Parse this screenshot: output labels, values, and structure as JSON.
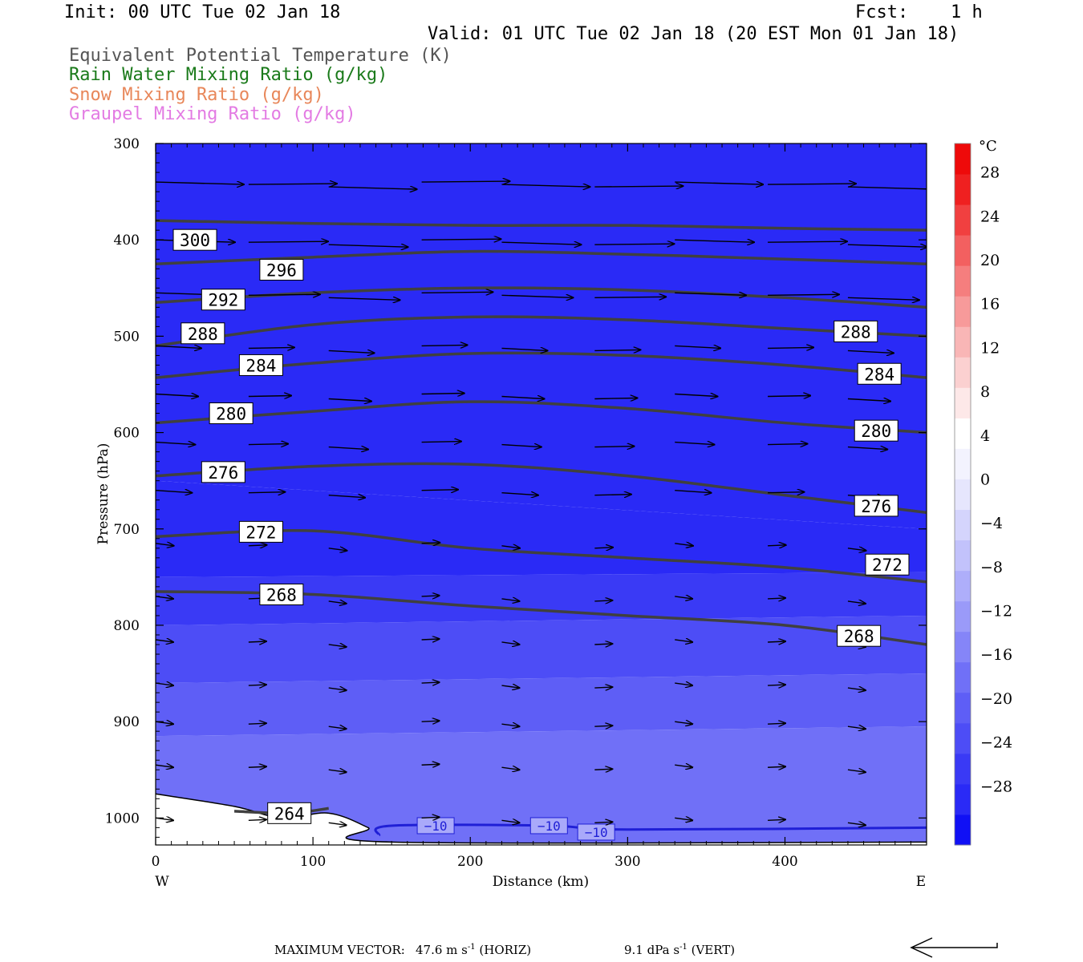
{
  "header": {
    "init": "Init: 00 UTC Tue 02 Jan 18",
    "fcst_label": "Fcst:",
    "fcst_value": "1 h",
    "valid": "Valid: 01 UTC Tue 02 Jan 18 (20 EST Mon 01 Jan 18)",
    "legend": [
      {
        "text": "Equivalent Potential Temperature (K)",
        "color": "#555555"
      },
      {
        "text": "Rain Water Mixing Ratio (g/kg)",
        "color": "#1a7a1a"
      },
      {
        "text": "Snow Mixing Ratio (g/kg)",
        "color": "#e8875a"
      },
      {
        "text": "Graupel Mixing Ratio (g/kg)",
        "color": "#e37be3"
      }
    ]
  },
  "footer": {
    "max_label": "MAXIMUM VECTOR:",
    "horiz_value": "47.6 m s",
    "horiz_exp": "-1",
    "horiz_unit": "(HORIZ)",
    "vert_value": "9.1 dPa s",
    "vert_exp": "-1",
    "vert_unit": "(VERT)"
  },
  "chart_data": {
    "type": "contour cross-section",
    "xlabel": "Distance (km)",
    "ylabel": "Pressure (hPa)",
    "xlim": [
      0,
      490
    ],
    "ylim": [
      1028,
      300
    ],
    "x_ticks": [
      0,
      100,
      200,
      300,
      400
    ],
    "y_ticks": [
      300,
      400,
      500,
      600,
      700,
      800,
      900,
      1000
    ],
    "x_end_labels": {
      "left": "W",
      "right": "E"
    },
    "colorbar": {
      "unit": "°C",
      "tick_labels": [
        "28",
        "24",
        "20",
        "16",
        "12",
        "8",
        "4",
        "0",
        "−4",
        "−8",
        "−12",
        "−16",
        "−20",
        "−24",
        "−28"
      ],
      "tick_values": [
        28,
        24,
        20,
        16,
        12,
        8,
        4,
        0,
        -4,
        -8,
        -12,
        -16,
        -20,
        -24,
        -28
      ],
      "range": [
        -32,
        32
      ],
      "step": 4,
      "colors_low_to_high": [
        "#1010f5",
        "#2a2af6",
        "#3a3af5",
        "#4d4df6",
        "#5e5ef6",
        "#7070f7",
        "#8585f8",
        "#9a9af9",
        "#aeaefa",
        "#c2c2fb",
        "#d4d4fc",
        "#e6e6fd",
        "#f3f3fe",
        "#ffffff",
        "#fde8e8",
        "#fbd0d0",
        "#f9b6b6",
        "#f79a9a",
        "#f57e7e",
        "#f36060",
        "#f14040",
        "#ef2020",
        "#ee0a0a"
      ]
    },
    "temperature_zones_c": [
      {
        "label": "-30",
        "x": [
          0,
          490
        ],
        "top": [
          300,
          300
        ],
        "bottom": [
          650,
          700
        ]
      },
      {
        "label": "-28",
        "x": [
          0,
          490
        ],
        "top": [
          650,
          700
        ],
        "bottom": [
          750,
          745
        ]
      },
      {
        "label": "-24",
        "x": [
          0,
          490
        ],
        "top": [
          750,
          745
        ],
        "bottom": [
          800,
          790
        ]
      },
      {
        "label": "-20",
        "x": [
          0,
          490
        ],
        "top": [
          800,
          790
        ],
        "bottom": [
          860,
          850
        ]
      },
      {
        "label": "-16",
        "x": [
          0,
          490
        ],
        "top": [
          860,
          850
        ],
        "bottom": [
          915,
          905
        ]
      },
      {
        "label": "-12",
        "x": [
          0,
          490
        ],
        "top": [
          915,
          905
        ],
        "bottom": [
          1028,
          1028
        ]
      }
    ],
    "theta_e_contours": [
      {
        "level": 300,
        "x": [
          0,
          100,
          200,
          300,
          400,
          490
        ],
        "p": [
          380,
          383,
          385,
          385,
          388,
          390
        ],
        "label_x": 25,
        "label_p": 400
      },
      {
        "level": 296,
        "x": [
          0,
          100,
          200,
          300,
          400,
          490
        ],
        "p": [
          425,
          418,
          412,
          415,
          420,
          425
        ],
        "label_x": 80,
        "label_p": 431
      },
      {
        "level": 292,
        "x": [
          0,
          100,
          200,
          300,
          400,
          490
        ],
        "p": [
          465,
          455,
          450,
          452,
          460,
          470
        ],
        "label_x": 43,
        "label_p": 462
      },
      {
        "level": 288,
        "x": [
          0,
          100,
          200,
          300,
          400,
          490
        ],
        "p": [
          510,
          488,
          480,
          483,
          492,
          500
        ],
        "label_x": 30,
        "label_p": 497,
        "label2_x": 445,
        "label2_p": 495
      },
      {
        "level": 284,
        "x": [
          0,
          100,
          200,
          300,
          400,
          490
        ],
        "p": [
          543,
          528,
          518,
          520,
          530,
          543
        ],
        "label_x": 67,
        "label_p": 530,
        "label2_x": 460,
        "label2_p": 539
      },
      {
        "level": 280,
        "x": [
          0,
          100,
          200,
          300,
          400,
          490
        ],
        "p": [
          590,
          578,
          568,
          575,
          590,
          600
        ],
        "label_x": 48,
        "label_p": 580,
        "label2_x": 458,
        "label2_p": 598
      },
      {
        "level": 276,
        "x": [
          0,
          100,
          200,
          300,
          400,
          490
        ],
        "p": [
          645,
          635,
          633,
          645,
          665,
          683
        ],
        "label_x": 43,
        "label_p": 641,
        "label2_x": 458,
        "label2_p": 676
      },
      {
        "level": 272,
        "x": [
          0,
          100,
          200,
          300,
          400,
          490
        ],
        "p": [
          708,
          702,
          720,
          730,
          740,
          755
        ],
        "label_x": 67,
        "label_p": 703,
        "label2_x": 465,
        "label2_p": 737
      },
      {
        "level": 268,
        "x": [
          0,
          100,
          200,
          300,
          400,
          490
        ],
        "p": [
          765,
          768,
          780,
          790,
          800,
          820
        ],
        "label_x": 80,
        "label_p": 768,
        "label2_x": 447,
        "label2_p": 811
      },
      {
        "level": 264,
        "x": [
          50,
          85,
          110
        ],
        "p": [
          993,
          995,
          990
        ],
        "label_x": 85,
        "label_p": 995
      }
    ],
    "minus10_contour": {
      "label": "−10",
      "x": [
        142,
        150,
        250,
        300,
        490
      ],
      "p": [
        1018,
        1008,
        1008,
        1012,
        1010
      ],
      "label_positions_km": [
        178,
        250,
        280
      ]
    },
    "terrain_p": {
      "x": [
        0,
        50,
        80,
        110,
        135,
        150,
        490
      ],
      "p": [
        975,
        988,
        1000,
        995,
        1010,
        1025,
        1025
      ]
    },
    "wind_vectors_samples": [
      {
        "x": 20,
        "p": 340,
        "u": 40,
        "w": 0
      },
      {
        "x": 130,
        "p": 344,
        "u": 42,
        "w": -1
      },
      {
        "x": 280,
        "p": 350,
        "u": 45,
        "w": 0
      },
      {
        "x": 440,
        "p": 350,
        "u": 47.6,
        "w": 0
      },
      {
        "x": 130,
        "p": 595,
        "u": 25,
        "w": 0
      },
      {
        "x": 380,
        "p": 613,
        "u": 20,
        "w": 0
      },
      {
        "x": 130,
        "p": 783,
        "u": 10,
        "w": 0
      },
      {
        "x": 380,
        "p": 790,
        "u": 8,
        "w": 0
      },
      {
        "x": 130,
        "p": 950,
        "u": 9,
        "w": 0
      },
      {
        "x": 380,
        "p": 960,
        "u": 6,
        "w": -1
      }
    ]
  }
}
